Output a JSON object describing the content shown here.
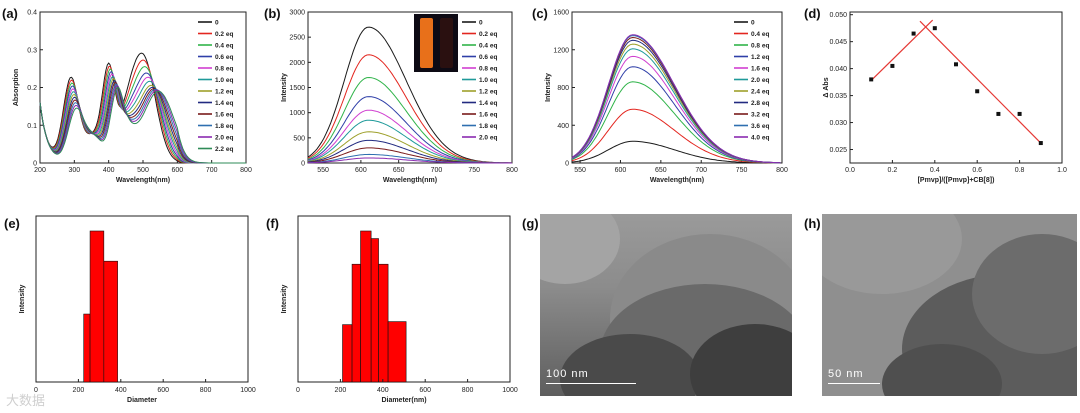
{
  "chart_data": [
    {
      "panel": "(a)",
      "type": "line",
      "xlabel": "Wavelength(nm)",
      "ylabel": "Absorption",
      "xlim": [
        200,
        800
      ],
      "ylim": [
        0,
        0.4
      ],
      "xticks": [
        200,
        300,
        400,
        500,
        600,
        700,
        800
      ],
      "yticks": [
        0,
        0.1,
        0.2,
        0.3,
        0.4
      ],
      "legend": [
        "0",
        "0.2 eq",
        "0.4 eq",
        "0.6 eq",
        "0.8 eq",
        "1.0 eq",
        "1.2 eq",
        "1.4 eq",
        "1.6 eq",
        "1.8 eq",
        "2.0 eq",
        "2.2 eq"
      ],
      "peaks": {
        "p1": 290,
        "p2": 400,
        "p3": 500
      },
      "series_max": [
        0.28,
        0.265,
        0.25,
        0.235,
        0.225,
        0.215,
        0.205,
        0.2,
        0.197,
        0.195,
        0.193,
        0.19
      ],
      "shift_max_nm": 45
    },
    {
      "panel": "(b)",
      "type": "line",
      "xlabel": "Wavelength(nm)",
      "ylabel": "Intensity",
      "xlim": [
        530,
        800
      ],
      "ylim": [
        0,
        3000
      ],
      "xticks": [
        550,
        600,
        650,
        700,
        750,
        800
      ],
      "yticks": [
        0,
        500,
        1000,
        1500,
        2000,
        2500,
        3000
      ],
      "legend": [
        "0",
        "0.2 eq",
        "0.4 eq",
        "0.6 eq",
        "0.8 eq",
        "1.0 eq",
        "1.2 eq",
        "1.4 eq",
        "1.6 eq",
        "1.8 eq",
        "2.0 eq"
      ],
      "peak_nm": 610,
      "peak_values": [
        2700,
        2150,
        1700,
        1320,
        1050,
        850,
        620,
        450,
        300,
        170,
        100
      ]
    },
    {
      "panel": "(c)",
      "type": "line",
      "xlabel": "Wavelength(nm)",
      "ylabel": "Intensity",
      "xlim": [
        540,
        800
      ],
      "ylim": [
        0,
        1600
      ],
      "xticks": [
        550,
        600,
        650,
        700,
        750,
        800
      ],
      "yticks": [
        0,
        400,
        800,
        1200,
        1600
      ],
      "legend": [
        "0",
        "0.4 eq",
        "0.8 eq",
        "1.2 eq",
        "1.6 eq",
        "2.0 eq",
        "2.4 eq",
        "2.8 eq",
        "3.2 eq",
        "3.6 eq",
        "4.0 eq"
      ],
      "peak_nm": 615,
      "peak_values": [
        230,
        570,
        860,
        1020,
        1130,
        1210,
        1260,
        1300,
        1330,
        1350,
        1360
      ]
    },
    {
      "panel": "(d)",
      "type": "scatter",
      "xlabel": "[Pmvp]/([Pmvp]+CB[8])",
      "ylabel": "Δ Abs",
      "xlim": [
        0,
        1.0
      ],
      "ylim": [
        0.0225,
        0.0505
      ],
      "xticks": [
        0.0,
        0.2,
        0.4,
        0.6,
        0.8,
        1.0
      ],
      "yticks": [
        0.025,
        0.03,
        0.035,
        0.04,
        0.045,
        0.05
      ],
      "points": [
        [
          0.1,
          0.038
        ],
        [
          0.2,
          0.0405
        ],
        [
          0.3,
          0.0465
        ],
        [
          0.4,
          0.0475
        ],
        [
          0.5,
          0.0408
        ],
        [
          0.6,
          0.0358
        ],
        [
          0.7,
          0.0316
        ],
        [
          0.8,
          0.0316
        ],
        [
          0.9,
          0.0262
        ]
      ],
      "fit_lines": [
        [
          [
            0.1,
            0.0378
          ],
          [
            0.39,
            0.049
          ]
        ],
        [
          [
            0.33,
            0.0488
          ],
          [
            0.9,
            0.0262
          ]
        ]
      ],
      "line_color": "#e53935"
    },
    {
      "panel": "(e)",
      "type": "bar",
      "xlabel": "Diameter",
      "ylabel": "Intensity",
      "xlim": [
        0,
        1000
      ],
      "xticks": [
        0,
        200,
        400,
        600,
        800,
        1000
      ],
      "bins": [
        [
          225,
          255,
          0.45
        ],
        [
          255,
          320,
          1.0
        ],
        [
          320,
          385,
          0.8
        ]
      ],
      "color": "#ff0000"
    },
    {
      "panel": "(f)",
      "type": "bar",
      "xlabel": "Diameter(nm)",
      "ylabel": "Intensity",
      "xlim": [
        0,
        1000
      ],
      "xticks": [
        0,
        200,
        400,
        600,
        800,
        1000
      ],
      "bins": [
        [
          210,
          255,
          0.38
        ],
        [
          255,
          295,
          0.78
        ],
        [
          295,
          345,
          1.0
        ],
        [
          345,
          380,
          0.95
        ],
        [
          380,
          425,
          0.78
        ],
        [
          425,
          510,
          0.4
        ]
      ],
      "color": "#ff0000"
    }
  ],
  "panels": {
    "a": "(a)",
    "b": "(b)",
    "c": "(c)",
    "d": "(d)",
    "e": "(e)",
    "f": "(f)",
    "g": "(g)",
    "h": "(h)"
  },
  "tem_g": {
    "scale_label": "100 nm"
  },
  "tem_h": {
    "scale_label": "50 nm"
  },
  "watermark": "大数据"
}
